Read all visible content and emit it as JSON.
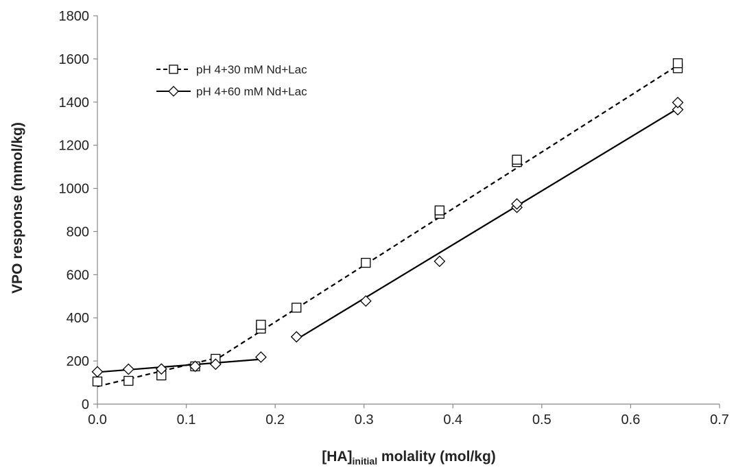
{
  "chart_data": {
    "type": "scatter",
    "xlabel_main": "[HA]",
    "xlabel_sub": "initial",
    "xlabel_rest": " molality (mol/kg)",
    "ylabel": "VPO response (mmol/kg)",
    "xlim": [
      0,
      0.7
    ],
    "ylim": [
      0,
      1800
    ],
    "x_ticks": [
      "0.0",
      "0.1",
      "0.2",
      "0.3",
      "0.4",
      "0.5",
      "0.6",
      "0.7"
    ],
    "y_ticks": [
      "0",
      "200",
      "400",
      "600",
      "800",
      "1000",
      "1200",
      "1400",
      "1600",
      "1800"
    ],
    "grid": false,
    "legend_position": "top-left",
    "series": [
      {
        "name": "pH 4+30 mM Nd+Lac",
        "marker": "square",
        "line_style": "dashed",
        "x": [
          0.0,
          0.035,
          0.072,
          0.11,
          0.133,
          0.184,
          0.184,
          0.224,
          0.302,
          0.385,
          0.385,
          0.472,
          0.472,
          0.653,
          0.653
        ],
        "y": [
          105,
          108,
          133,
          175,
          210,
          350,
          368,
          447,
          655,
          882,
          898,
          1122,
          1133,
          1557,
          1580
        ],
        "fit_lines": [
          {
            "x": [
              0.0,
              0.138
            ],
            "y": [
              82,
              218
            ]
          },
          {
            "x": [
              0.138,
              0.653
            ],
            "y": [
              218,
              1570
            ]
          }
        ]
      },
      {
        "name": "pH 4+60 mM Nd+Lac",
        "marker": "diamond",
        "line_style": "solid",
        "x": [
          0.0,
          0.035,
          0.072,
          0.11,
          0.133,
          0.184,
          0.224,
          0.302,
          0.385,
          0.472,
          0.472,
          0.653,
          0.653
        ],
        "y": [
          150,
          162,
          163,
          175,
          185,
          218,
          312,
          478,
          662,
          912,
          928,
          1365,
          1398
        ],
        "fit_lines": [
          {
            "x": [
              0.0,
              0.184
            ],
            "y": [
              148,
              208
            ]
          },
          {
            "x": [
              0.224,
              0.653
            ],
            "y": [
              300,
              1370
            ]
          }
        ]
      }
    ]
  },
  "colors": {
    "ink": "#000000",
    "marker_fill": "#ffffff",
    "axis": "#888888"
  }
}
